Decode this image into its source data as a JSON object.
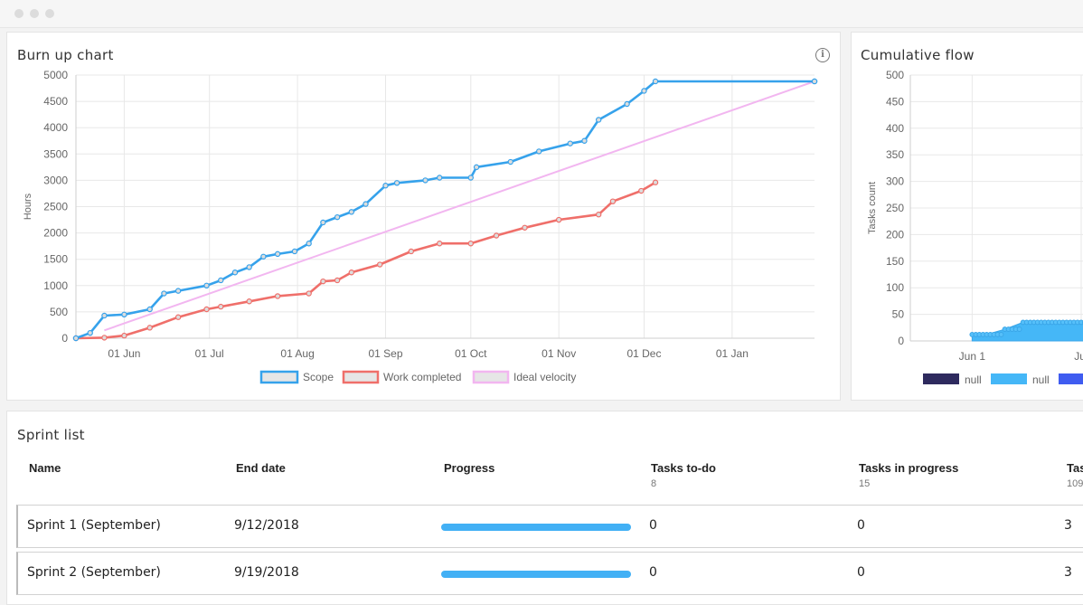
{
  "window": {
    "dots": [
      "close",
      "minimize",
      "zoom"
    ]
  },
  "burnup": {
    "title": "Burn up chart",
    "info_icon": "info-icon",
    "ylabel": "Hours",
    "yticks": [
      0,
      500,
      1000,
      1500,
      2000,
      2500,
      3000,
      3500,
      4000,
      4500,
      5000
    ],
    "xticks": [
      "01 Jun",
      "01 Jul",
      "01 Aug",
      "01 Sep",
      "01 Oct",
      "01 Nov",
      "01 Dec",
      "01 Jan"
    ],
    "legend": [
      "Scope",
      "Work completed",
      "Ideal velocity"
    ],
    "colors": {
      "scope": "#36a2eb",
      "work": "#ef6f6a",
      "ideal": "#f2b6f0"
    }
  },
  "cumulative": {
    "title": "Cumulative flow",
    "ylabel": "Tasks count",
    "yticks": [
      0,
      50,
      100,
      150,
      200,
      250,
      300,
      350,
      400,
      450,
      500
    ],
    "xticks": [
      "Jun 1",
      "Jul"
    ],
    "legend": [
      "null",
      "null",
      ""
    ],
    "colors": [
      "#2e2a5e",
      "#45b7f7",
      "#3f5cf0"
    ]
  },
  "chart_data": [
    {
      "type": "line",
      "title": "Burn up chart",
      "ylabel": "Hours",
      "ylim": [
        0,
        5000
      ],
      "x_axis": "date",
      "legend_position": "bottom",
      "series": [
        {
          "name": "Scope",
          "x": [
            "2018-05-15",
            "2018-05-20",
            "2018-05-25",
            "2018-06-01",
            "2018-06-10",
            "2018-06-15",
            "2018-06-20",
            "2018-06-30",
            "2018-07-05",
            "2018-07-10",
            "2018-07-15",
            "2018-07-20",
            "2018-07-25",
            "2018-07-31",
            "2018-08-05",
            "2018-08-10",
            "2018-08-15",
            "2018-08-20",
            "2018-08-25",
            "2018-09-01",
            "2018-09-05",
            "2018-09-15",
            "2018-09-20",
            "2018-10-01",
            "2018-10-03",
            "2018-10-15",
            "2018-10-25",
            "2018-11-05",
            "2018-11-10",
            "2018-11-15",
            "2018-11-25",
            "2018-12-01",
            "2018-12-05",
            "2019-01-30"
          ],
          "values": [
            0,
            100,
            430,
            450,
            550,
            850,
            900,
            1000,
            1100,
            1250,
            1350,
            1550,
            1600,
            1650,
            1800,
            2200,
            2300,
            2400,
            2550,
            2900,
            2950,
            3000,
            3050,
            3050,
            3250,
            3350,
            3550,
            3700,
            3750,
            4150,
            4450,
            4700,
            4880,
            4880
          ]
        },
        {
          "name": "Work completed",
          "x": [
            "2018-05-15",
            "2018-05-25",
            "2018-06-01",
            "2018-06-10",
            "2018-06-20",
            "2018-06-30",
            "2018-07-05",
            "2018-07-15",
            "2018-07-25",
            "2018-08-05",
            "2018-08-10",
            "2018-08-15",
            "2018-08-20",
            "2018-08-30",
            "2018-09-10",
            "2018-09-20",
            "2018-10-01",
            "2018-10-10",
            "2018-10-20",
            "2018-11-01",
            "2018-11-15",
            "2018-11-20",
            "2018-11-30",
            "2018-12-05"
          ],
          "values": [
            0,
            10,
            50,
            200,
            400,
            550,
            600,
            700,
            800,
            850,
            1080,
            1100,
            1250,
            1400,
            1650,
            1800,
            1800,
            1950,
            2100,
            2250,
            2350,
            2600,
            2800,
            2960
          ]
        },
        {
          "name": "Ideal velocity",
          "x": [
            "2018-05-25",
            "2019-01-30"
          ],
          "values": [
            150,
            4880
          ]
        }
      ]
    },
    {
      "type": "area",
      "title": "Cumulative flow",
      "ylabel": "Tasks count",
      "ylim": [
        0,
        500
      ],
      "x_axis": "date",
      "legend_position": "bottom",
      "series": [
        {
          "name": "null",
          "x": [
            "2018-06-01",
            "2018-06-05",
            "2018-06-10",
            "2018-06-15",
            "2018-06-20",
            "2018-06-25",
            "2018-06-30"
          ],
          "values": [
            12,
            12,
            22,
            35,
            35,
            35,
            35
          ]
        }
      ]
    }
  ],
  "sprints": {
    "title": "Sprint list",
    "columns": [
      {
        "label": "Name",
        "count": ""
      },
      {
        "label": "End date",
        "count": ""
      },
      {
        "label": "Progress",
        "count": ""
      },
      {
        "label": "Tasks to-do",
        "count": "8"
      },
      {
        "label": "Tasks in progress",
        "count": "15"
      },
      {
        "label": "Tas",
        "count": "109"
      }
    ],
    "rows": [
      {
        "name": "Sprint 1 (September)",
        "end": "9/12/2018",
        "progress": 1.0,
        "todo": "0",
        "inprogress": "0",
        "done": "3"
      },
      {
        "name": "Sprint 2 (September)",
        "end": "9/19/2018",
        "progress": 1.0,
        "todo": "0",
        "inprogress": "0",
        "done": "3"
      }
    ]
  }
}
